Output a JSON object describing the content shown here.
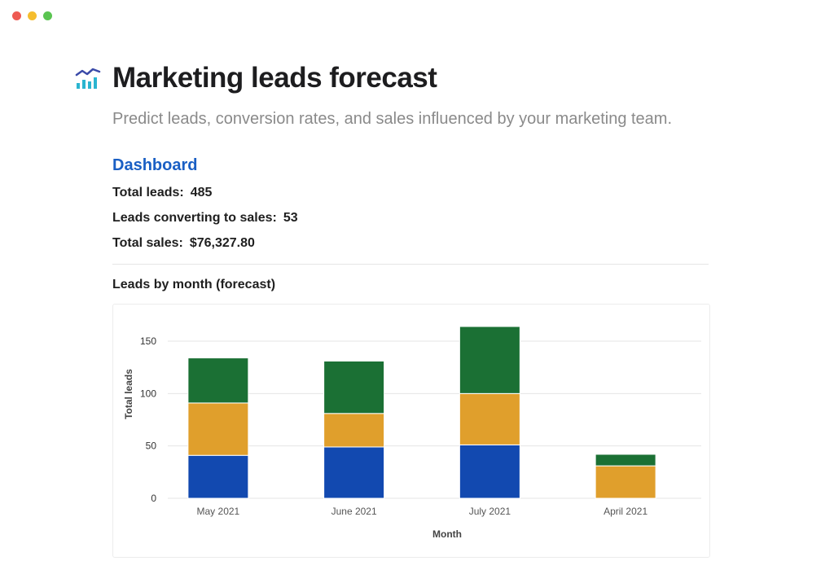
{
  "window": {
    "controls": [
      {
        "name": "close",
        "color": "#ee5a52"
      },
      {
        "name": "minimize",
        "color": "#f5bd2e"
      },
      {
        "name": "maximize",
        "color": "#5ac451"
      }
    ]
  },
  "page": {
    "icon": "chart-trend-icon",
    "title": "Marketing leads forecast",
    "subtitle": "Predict leads, conversion rates, and sales influenced by your marketing team."
  },
  "dashboard": {
    "heading": "Dashboard",
    "stats": [
      {
        "label": "Total leads:",
        "value": "485"
      },
      {
        "label": "Leads converting to sales:",
        "value": "53"
      },
      {
        "label": "Total sales:",
        "value": "$76,327.80"
      }
    ]
  },
  "chart_data": {
    "type": "bar",
    "stacked": true,
    "title": "Leads by month (forecast)",
    "xlabel": "Month",
    "ylabel": "Total leads",
    "categories": [
      "May 2021",
      "June 2021",
      "July 2021",
      "April 2021"
    ],
    "series": [
      {
        "color": "#1249b0",
        "values": [
          41,
          49,
          51,
          0
        ]
      },
      {
        "color": "#e09f2c",
        "values": [
          50,
          32,
          49,
          31
        ]
      },
      {
        "color": "#1b7034",
        "values": [
          43,
          50,
          64,
          11
        ]
      }
    ],
    "ylim": [
      0,
      170
    ],
    "yticks": [
      0,
      50,
      100,
      150
    ],
    "grid": true
  }
}
